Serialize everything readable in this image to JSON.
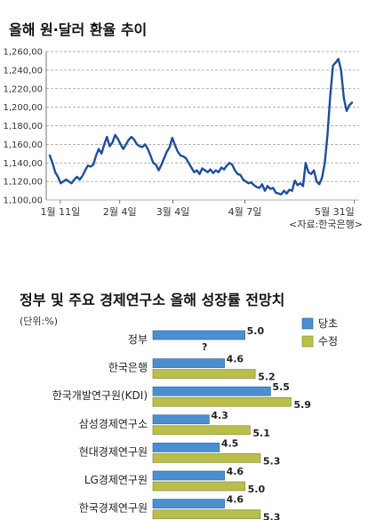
{
  "colors": {
    "line": "#1f4e9c",
    "bar_original": "#4a8fd1",
    "bar_revised": "#b9bf4a",
    "grid": "#9a9a9a"
  },
  "chart_data": [
    {
      "type": "line",
      "title": "올해 원·달러 환율 추이",
      "source": "<자료:한국은행>",
      "ylim": [
        1100,
        1260
      ],
      "yticks": [
        "1,260,00",
        "1,240,00",
        "1,220,00",
        "1,200,00",
        "1,180,00",
        "1,160,00",
        "1,140,00",
        "1,120,00",
        "1,100,00"
      ],
      "xtick_labels": [
        "1월 11일",
        "2월 4일",
        "3월 4일",
        "4월 7일",
        "5월 31일"
      ],
      "grid": true,
      "series": [
        {
          "values": [
            1148,
            1140,
            1130,
            1125,
            1118,
            1120,
            1122,
            1120,
            1118,
            1122,
            1125,
            1122,
            1126,
            1132,
            1137,
            1136,
            1138,
            1148,
            1155,
            1150,
            1160,
            1168,
            1158,
            1162,
            1170,
            1166,
            1160,
            1155,
            1160,
            1165,
            1168,
            1165,
            1160,
            1158,
            1157,
            1160,
            1155,
            1148,
            1140,
            1138,
            1132,
            1138,
            1145,
            1152,
            1157,
            1167,
            1159,
            1152,
            1148,
            1147,
            1145,
            1140,
            1135,
            1130,
            1132,
            1128,
            1134,
            1132,
            1130,
            1133,
            1129,
            1132,
            1130,
            1135,
            1133,
            1137,
            1140,
            1138,
            1132,
            1128,
            1127,
            1122,
            1120,
            1118,
            1119,
            1116,
            1114,
            1113,
            1117,
            1110,
            1115,
            1112,
            1113,
            1108,
            1107,
            1106,
            1110,
            1107,
            1111,
            1110,
            1121,
            1116,
            1118,
            1115,
            1140,
            1130,
            1128,
            1132,
            1120,
            1117,
            1124,
            1140,
            1170,
            1212,
            1245,
            1248,
            1252,
            1240,
            1210,
            1196,
            1202,
            1205
          ]
        }
      ]
    },
    {
      "type": "bar",
      "title": "정부 및 주요 경제연구소 올해 성장률 전망치",
      "unit_label": "(단위:%)",
      "categories": [
        "정부",
        "한국은행",
        "한국개발연구원(KDI)",
        "삼성경제연구소",
        "현대경제연구원",
        "LG경제연구원",
        "한국경제연구원"
      ],
      "series": [
        {
          "name": "당초",
          "values": [
            5.0,
            4.6,
            5.5,
            4.3,
            4.5,
            4.6,
            4.6
          ],
          "labels": [
            "5.0",
            "4.6",
            "5.5",
            "4.3",
            "4.5",
            "4.6",
            "4.6"
          ]
        },
        {
          "name": "수정",
          "values": [
            null,
            5.2,
            5.9,
            5.1,
            5.3,
            5.0,
            5.3
          ],
          "labels": [
            "?",
            "5.2",
            "5.9",
            "5.1",
            "5.3",
            "5.0",
            "5.3"
          ]
        }
      ]
    }
  ]
}
